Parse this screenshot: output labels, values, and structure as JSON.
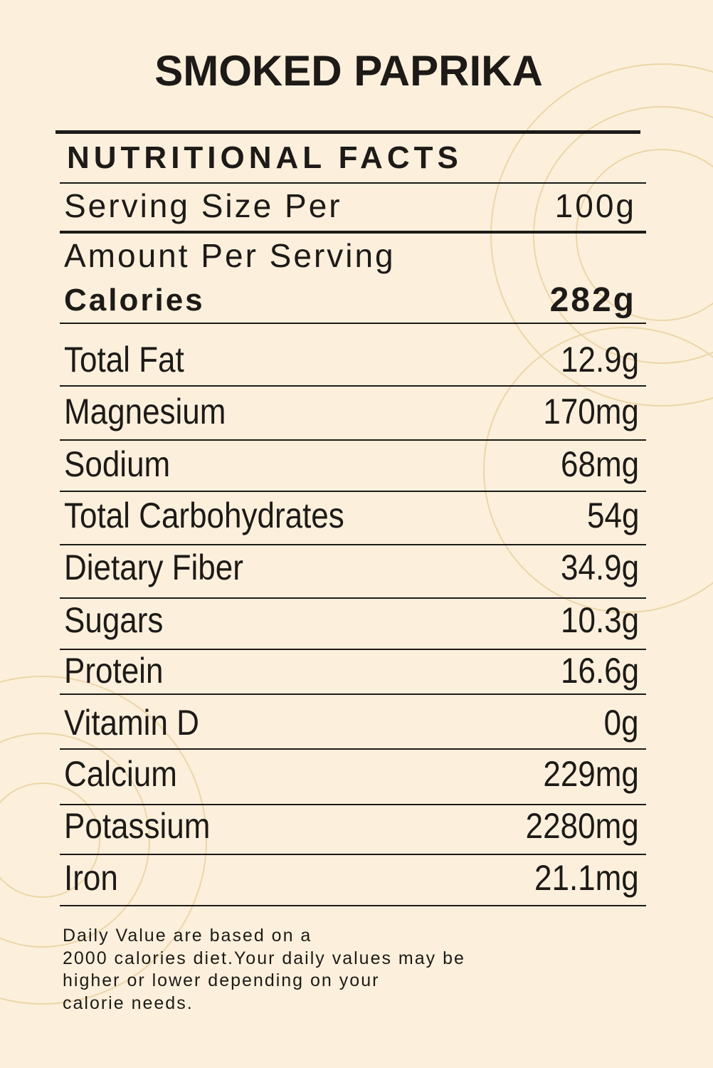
{
  "title": "SMOKED PAPRIKA",
  "header": "NUTRITIONAL FACTS",
  "serving": {
    "label": "Serving Size Per",
    "value": "100g"
  },
  "amount_label": "Amount Per Serving",
  "calories": {
    "label": "Calories",
    "value": "282g"
  },
  "rows": [
    [
      "Total Fat",
      "12.9g"
    ],
    [
      "Magnesium",
      "170mg"
    ],
    [
      "Sodium",
      "68mg"
    ],
    [
      "Total Carbohydrates",
      "54g"
    ],
    [
      "Dietary Fiber",
      "34.9g"
    ],
    [
      "Sugars",
      "10.3g"
    ],
    [
      "Protein",
      "16.6g"
    ],
    [
      "Vitamin D",
      "0g"
    ],
    [
      "Calcium",
      "229mg"
    ],
    [
      "Potassium",
      "2280mg"
    ],
    [
      "Iron",
      "21.1mg"
    ]
  ],
  "footnote": [
    "Daily Value are based on a",
    "2000 calories diet.Your daily values may be",
    "higher or lower depending on your",
    "calorie needs."
  ]
}
